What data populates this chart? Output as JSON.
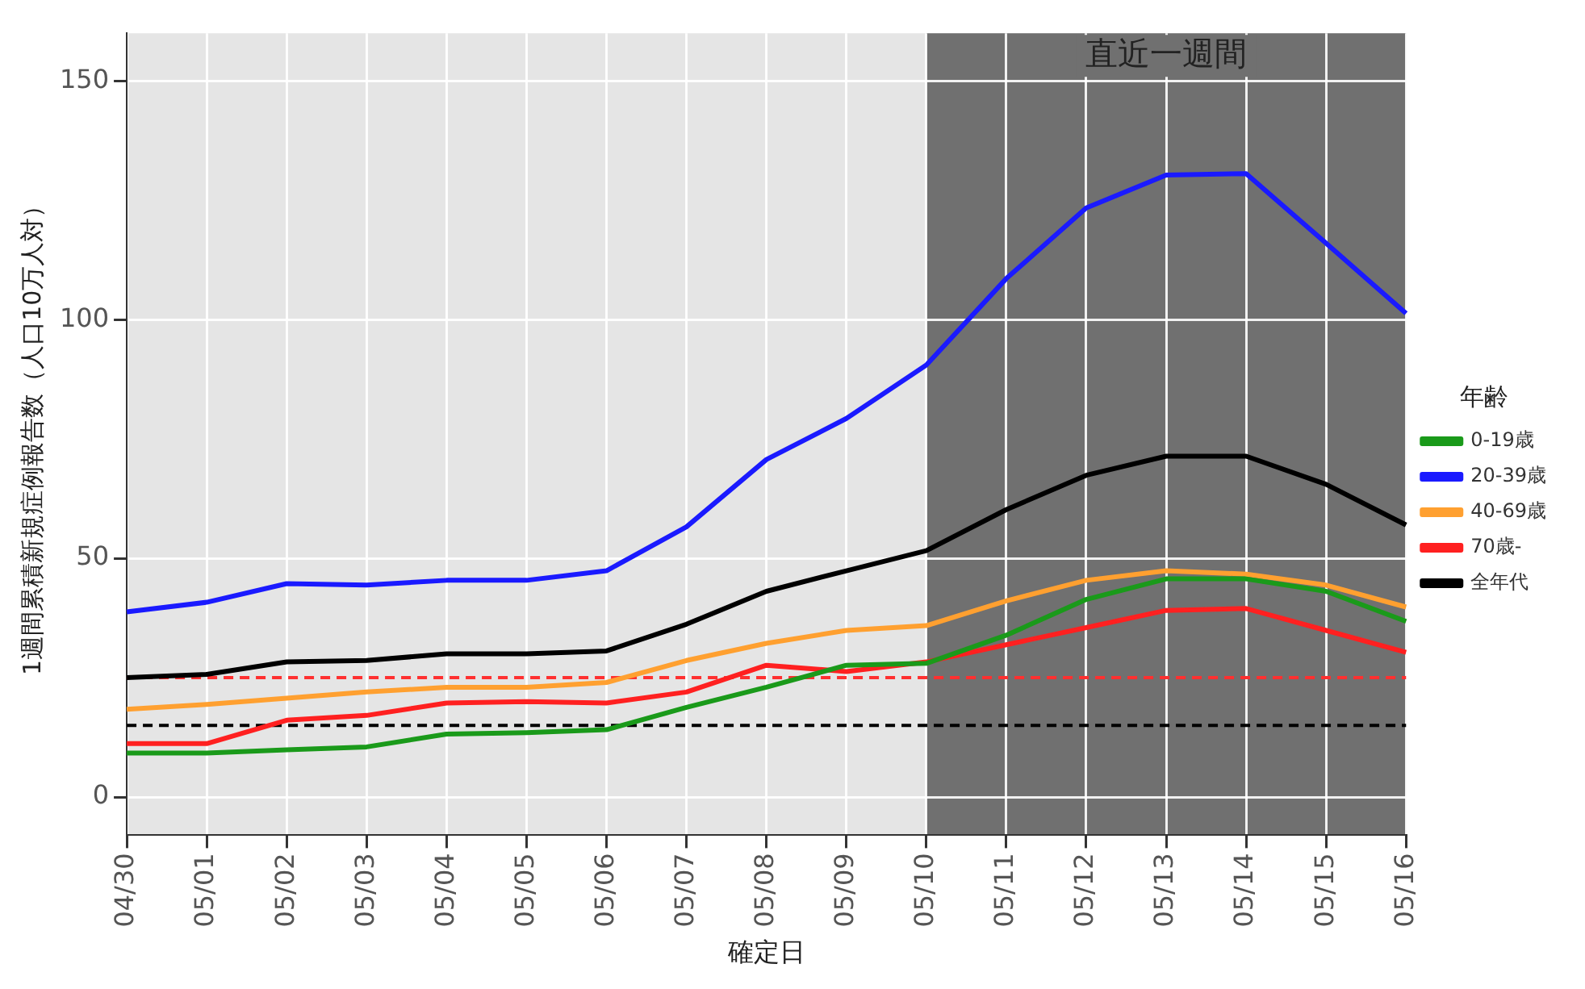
{
  "chart_data": {
    "type": "line",
    "xlabel": "確定日",
    "ylabel": "1週間累積新規症例報告数（人口10万人対）",
    "legend_title": "年齢",
    "legend": "right",
    "grid": true,
    "line_style": "solid",
    "marker": "none",
    "categories": [
      "04/30",
      "05/01",
      "05/02",
      "05/03",
      "05/04",
      "05/05",
      "05/06",
      "05/07",
      "05/08",
      "05/09",
      "05/10",
      "05/11",
      "05/12",
      "05/13",
      "05/14",
      "05/15",
      "05/16"
    ],
    "ylim": [
      -8,
      160
    ],
    "yticks": [
      0,
      50,
      100,
      150
    ],
    "series": [
      {
        "name": "0-19歳",
        "color": "#1a9a1a",
        "values": [
          9.2,
          9.2,
          9.9,
          10.5,
          13.2,
          13.5,
          14.1,
          18.8,
          23,
          27.6,
          28,
          33.9,
          41.4,
          45.7,
          45.7,
          43.1,
          36.8
        ]
      },
      {
        "name": "20-39歳",
        "color": "#1a1aff",
        "values": [
          38.8,
          40.8,
          44.7,
          44.4,
          45.4,
          45.4,
          47.4,
          56.6,
          70.7,
          79.3,
          90.5,
          108.6,
          123.4,
          130.3,
          130.6,
          116,
          101.3
        ]
      },
      {
        "name": "40-69歳",
        "color": "#ffa030",
        "values": [
          18.4,
          19.4,
          20.7,
          22,
          23,
          23,
          24,
          28.6,
          32.2,
          34.9,
          35.9,
          41.1,
          45.4,
          47.4,
          46.7,
          44.4,
          39.8
        ]
      },
      {
        "name": "70歳-",
        "color": "#ff2020",
        "values": [
          11.2,
          11.2,
          16.1,
          17.1,
          19.7,
          20,
          19.7,
          22,
          27.6,
          26.3,
          28.3,
          31.9,
          35.5,
          39.1,
          39.5,
          34.9,
          30.3
        ]
      },
      {
        "name": "全年代",
        "color": "#000000",
        "values": [
          25,
          25.7,
          28.3,
          28.6,
          30,
          30,
          30.6,
          36.2,
          43.1,
          47.4,
          51.6,
          60.2,
          67.4,
          71.4,
          71.4,
          65.5,
          57
        ]
      }
    ],
    "ref_lines": [
      {
        "axis": "y",
        "value": 25,
        "color": "#ff3030",
        "line_style": "dashed"
      },
      {
        "axis": "y",
        "value": 15,
        "color": "#000000",
        "line_style": "dashed"
      }
    ],
    "bands": [
      {
        "axis": "x",
        "from": "05/10",
        "to": "05/16",
        "label": "直近一週間",
        "color": "#707070"
      }
    ]
  }
}
